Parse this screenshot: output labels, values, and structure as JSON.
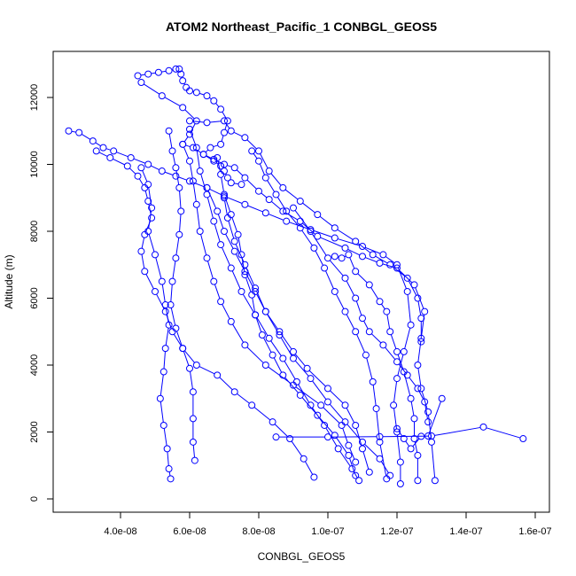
{
  "chart_data": {
    "type": "scatter",
    "title": "ATOM2 Northeast_Pacific_1 CONBGL_GEOS5",
    "xlabel": "CONBGL_GEOS5",
    "ylabel": "Altitude (m)",
    "xlim": [
      2.2e-08,
      1.6e-07
    ],
    "ylim": [
      0,
      13000
    ],
    "xticks": [
      4e-08,
      6e-08,
      8e-08,
      1e-07,
      1.2e-07,
      1.4e-07,
      1.6e-07
    ],
    "xtick_labels": [
      "4.0e-08",
      "6.0e-08",
      "8.0e-08",
      "1.0e-07",
      "1.2e-07",
      "1.4e-07",
      "1.6e-07"
    ],
    "yticks": [
      0,
      2000,
      4000,
      6000,
      8000,
      10000,
      12000
    ],
    "ytick_labels": [
      "0",
      "2000",
      "4000",
      "6000",
      "8000",
      "10000",
      "12000"
    ],
    "grid": false,
    "legend": "none",
    "color": "#0000ff",
    "series": [
      {
        "points": [
          [
            4.5e-08,
            12650
          ],
          [
            4.8e-08,
            12700
          ],
          [
            5.1e-08,
            12750
          ],
          [
            5.4e-08,
            12800
          ],
          [
            5.6e-08,
            12850
          ],
          [
            5.7e-08,
            12850
          ],
          [
            5.75e-08,
            12700
          ],
          [
            5.8e-08,
            12500
          ],
          [
            5.9e-08,
            12300
          ],
          [
            6e-08,
            12200
          ],
          [
            6.2e-08,
            12150
          ],
          [
            6.5e-08,
            12050
          ],
          [
            6.7e-08,
            11900
          ],
          [
            6.9e-08,
            11650
          ],
          [
            7.1e-08,
            11300
          ],
          [
            7e-08,
            10950
          ],
          [
            6.9e-08,
            10600
          ],
          [
            6.6e-08,
            10500
          ],
          [
            6.4e-08,
            10300
          ],
          [
            6.7e-08,
            10100
          ],
          [
            6.9e-08,
            9950
          ],
          [
            7e-08,
            9800
          ],
          [
            7.1e-08,
            9600
          ],
          [
            7.2e-08,
            9450
          ],
          [
            7.5e-08,
            9400
          ]
        ]
      },
      {
        "points": [
          [
            4.6e-08,
            12450
          ],
          [
            5.2e-08,
            12050
          ],
          [
            5.8e-08,
            11700
          ],
          [
            6.2e-08,
            11300
          ],
          [
            6e-08,
            10900
          ],
          [
            5.8e-08,
            10600
          ],
          [
            6.1e-08,
            10500
          ],
          [
            6.4e-08,
            10300
          ],
          [
            6.7e-08,
            10150
          ],
          [
            7e-08,
            10000
          ],
          [
            7.3e-08,
            9900
          ],
          [
            7.6e-08,
            9600
          ],
          [
            8e-08,
            9200
          ],
          [
            8.3e-08,
            8950
          ],
          [
            8.7e-08,
            8600
          ],
          [
            9.2e-08,
            8300
          ],
          [
            9.7e-08,
            7850
          ],
          [
            1.05e-07,
            7500
          ],
          [
            1.1e-07,
            7250
          ],
          [
            1.15e-07,
            7050
          ],
          [
            1.2e-07,
            6900
          ],
          [
            1.25e-07,
            6400
          ],
          [
            1.28e-07,
            5600
          ],
          [
            1.27e-07,
            4800
          ],
          [
            1.26e-07,
            4000
          ],
          [
            1.27e-07,
            3300
          ],
          [
            1.29e-07,
            2600
          ],
          [
            1.3e-07,
            1700
          ],
          [
            1.31e-07,
            550
          ]
        ]
      },
      {
        "points": [
          [
            2.5e-08,
            11000
          ],
          [
            2.8e-08,
            10950
          ],
          [
            3.2e-08,
            10700
          ],
          [
            3.5e-08,
            10500
          ],
          [
            3.8e-08,
            10400
          ],
          [
            4.3e-08,
            10200
          ],
          [
            4.8e-08,
            10000
          ],
          [
            5.2e-08,
            9800
          ],
          [
            5.6e-08,
            9650
          ],
          [
            6e-08,
            9500
          ],
          [
            6.5e-08,
            9300
          ],
          [
            7e-08,
            9050
          ],
          [
            7.6e-08,
            8800
          ],
          [
            8.2e-08,
            8550
          ],
          [
            8.8e-08,
            8300
          ],
          [
            9.5e-08,
            8050
          ],
          [
            1.02e-07,
            7800
          ],
          [
            1.1e-07,
            7550
          ],
          [
            1.16e-07,
            7300
          ],
          [
            1.2e-07,
            7000
          ],
          [
            1.23e-07,
            6200
          ],
          [
            1.24e-07,
            5200
          ],
          [
            1.22e-07,
            4400
          ],
          [
            1.2e-07,
            3600
          ],
          [
            1.19e-07,
            2800
          ],
          [
            1.2e-07,
            2000
          ],
          [
            1.21e-07,
            1100
          ],
          [
            1.21e-07,
            450
          ]
        ]
      },
      {
        "points": [
          [
            3.3e-08,
            10400
          ],
          [
            3.7e-08,
            10200
          ],
          [
            4.2e-08,
            9950
          ],
          [
            4.5e-08,
            9650
          ],
          [
            4.7e-08,
            9300
          ],
          [
            4.8e-08,
            8900
          ],
          [
            4.9e-08,
            8400
          ],
          [
            4.7e-08,
            7900
          ],
          [
            4.6e-08,
            7400
          ],
          [
            4.7e-08,
            6800
          ],
          [
            5e-08,
            6200
          ],
          [
            5.3e-08,
            5600
          ],
          [
            5.5e-08,
            5000
          ],
          [
            5.8e-08,
            4500
          ],
          [
            6.2e-08,
            4000
          ],
          [
            6.8e-08,
            3700
          ],
          [
            7.3e-08,
            3200
          ],
          [
            7.8e-08,
            2800
          ],
          [
            8.4e-08,
            2300
          ],
          [
            8.9e-08,
            1800
          ],
          [
            9.3e-08,
            1200
          ],
          [
            9.6e-08,
            650
          ]
        ]
      },
      {
        "points": [
          [
            4.6e-08,
            9900
          ],
          [
            4.8e-08,
            9400
          ],
          [
            4.9e-08,
            8700
          ],
          [
            4.8e-08,
            8000
          ],
          [
            5e-08,
            7300
          ],
          [
            5.2e-08,
            6500
          ],
          [
            5.3e-08,
            5800
          ],
          [
            5.4e-08,
            5200
          ],
          [
            5.3e-08,
            4500
          ],
          [
            5.25e-08,
            3800
          ],
          [
            5.15e-08,
            3000
          ],
          [
            5.25e-08,
            2200
          ],
          [
            5.35e-08,
            1500
          ],
          [
            5.4e-08,
            900
          ],
          [
            5.45e-08,
            600
          ]
        ]
      },
      {
        "points": [
          [
            5.4e-08,
            11000
          ],
          [
            5.5e-08,
            10400
          ],
          [
            5.6e-08,
            9900
          ],
          [
            5.7e-08,
            9300
          ],
          [
            5.75e-08,
            8600
          ],
          [
            5.7e-08,
            7900
          ],
          [
            5.6e-08,
            7200
          ],
          [
            5.5e-08,
            6500
          ],
          [
            5.45e-08,
            5800
          ],
          [
            5.6e-08,
            5100
          ],
          [
            5.8e-08,
            4500
          ],
          [
            6e-08,
            3900
          ],
          [
            6.1e-08,
            3200
          ],
          [
            6.1e-08,
            2400
          ],
          [
            6.1e-08,
            1700
          ],
          [
            6.15e-08,
            1150
          ]
        ]
      },
      {
        "points": [
          [
            6e-08,
            11050
          ],
          [
            6.2e-08,
            10500
          ],
          [
            6.3e-08,
            9800
          ],
          [
            6.5e-08,
            9100
          ],
          [
            6.7e-08,
            8300
          ],
          [
            6.9e-08,
            7600
          ],
          [
            7.2e-08,
            6900
          ],
          [
            7.5e-08,
            6200
          ],
          [
            7.9e-08,
            5500
          ],
          [
            8.3e-08,
            4800
          ],
          [
            8.7e-08,
            4200
          ],
          [
            9.1e-08,
            3500
          ],
          [
            9.5e-08,
            2800
          ],
          [
            9.9e-08,
            2200
          ],
          [
            1.03e-07,
            1500
          ],
          [
            1.07e-07,
            900
          ],
          [
            1.09e-07,
            550
          ]
        ]
      },
      {
        "points": [
          [
            7.8e-08,
            10400
          ],
          [
            8e-08,
            10100
          ],
          [
            8.2e-08,
            9600
          ],
          [
            8.5e-08,
            9100
          ],
          [
            8.8e-08,
            8600
          ],
          [
            9.2e-08,
            8100
          ],
          [
            9.6e-08,
            7500
          ],
          [
            9.9e-08,
            6900
          ],
          [
            1.02e-07,
            6200
          ],
          [
            1.05e-07,
            5600
          ],
          [
            1.08e-07,
            5000
          ],
          [
            1.11e-07,
            4300
          ],
          [
            1.13e-07,
            3500
          ],
          [
            1.14e-07,
            2700
          ],
          [
            1.15e-07,
            1700
          ],
          [
            1.17e-07,
            600
          ]
        ]
      },
      {
        "points": [
          [
            5.8e-08,
            10600
          ],
          [
            6e-08,
            10100
          ],
          [
            6.1e-08,
            9500
          ],
          [
            6.2e-08,
            8800
          ],
          [
            6.3e-08,
            8000
          ],
          [
            6.5e-08,
            7200
          ],
          [
            6.7e-08,
            6500
          ],
          [
            6.9e-08,
            5900
          ],
          [
            7.2e-08,
            5300
          ],
          [
            7.6e-08,
            4600
          ],
          [
            8.2e-08,
            4000
          ],
          [
            9e-08,
            3400
          ],
          [
            9.8e-08,
            2800
          ],
          [
            1.04e-07,
            2200
          ],
          [
            1.06e-07,
            1600
          ],
          [
            1.08e-07,
            1100
          ]
        ]
      },
      {
        "points": [
          [
            6.8e-08,
            10200
          ],
          [
            6.9e-08,
            9700
          ],
          [
            7e-08,
            9100
          ],
          [
            7.2e-08,
            8500
          ],
          [
            7.4e-08,
            7900
          ],
          [
            7.5e-08,
            7300
          ],
          [
            7.6e-08,
            6700
          ],
          [
            7.8e-08,
            6100
          ],
          [
            7.9e-08,
            5500
          ],
          [
            8.1e-08,
            4900
          ],
          [
            8.4e-08,
            4300
          ],
          [
            8.7e-08,
            3700
          ],
          [
            9.2e-08,
            3100
          ],
          [
            9.7e-08,
            2500
          ],
          [
            1.02e-07,
            1900
          ],
          [
            1.06e-07,
            1300
          ],
          [
            1.08e-07,
            700
          ]
        ]
      },
      {
        "points": [
          [
            6.5e-08,
            9300
          ],
          [
            6.8e-08,
            8600
          ],
          [
            7e-08,
            8000
          ],
          [
            7.3e-08,
            7400
          ],
          [
            7.6e-08,
            6800
          ],
          [
            7.9e-08,
            6200
          ],
          [
            8.2e-08,
            5600
          ],
          [
            8.6e-08,
            5000
          ],
          [
            9e-08,
            4400
          ],
          [
            9.4e-08,
            3900
          ],
          [
            1e-07,
            3300
          ],
          [
            1.05e-07,
            2800
          ],
          [
            1.08e-07,
            2200
          ],
          [
            1.1e-07,
            1500
          ],
          [
            1.12e-07,
            800
          ]
        ]
      },
      {
        "points": [
          [
            1.02e-07,
            7250
          ],
          [
            1.04e-07,
            7200
          ],
          [
            1.06e-07,
            7300
          ],
          [
            1.08e-07,
            6800
          ],
          [
            1.12e-07,
            6400
          ],
          [
            1.15e-07,
            5900
          ],
          [
            1.17e-07,
            5600
          ],
          [
            1.18e-07,
            5000
          ],
          [
            1.2e-07,
            4400
          ],
          [
            1.22e-07,
            3800
          ],
          [
            1.24e-07,
            3000
          ],
          [
            1.25e-07,
            2400
          ],
          [
            1.25e-07,
            1800
          ],
          [
            1.26e-07,
            1300
          ],
          [
            1.26e-07,
            550
          ]
        ]
      },
      {
        "points": [
          [
            8.5e-08,
            1850
          ],
          [
            1e-07,
            1850
          ],
          [
            1.15e-07,
            1860
          ],
          [
            1.3e-07,
            1880
          ],
          [
            1.45e-07,
            2150
          ],
          [
            1.565e-07,
            1800
          ]
        ]
      },
      {
        "points": [
          [
            1.2e-07,
            2100
          ],
          [
            1.22e-07,
            1800
          ],
          [
            1.24e-07,
            1500
          ],
          [
            1.27e-07,
            1870
          ],
          [
            1.29e-07,
            1880
          ],
          [
            1.33e-07,
            3000
          ]
        ]
      },
      {
        "points": [
          [
            9e-08,
            8700
          ],
          [
            9.5e-08,
            8000
          ],
          [
            1e-07,
            7200
          ],
          [
            1.05e-07,
            6600
          ],
          [
            1.08e-07,
            6000
          ],
          [
            1.1e-07,
            5400
          ],
          [
            1.12e-07,
            5000
          ],
          [
            1.16e-07,
            4600
          ],
          [
            1.2e-07,
            4100
          ],
          [
            1.23e-07,
            3700
          ],
          [
            1.26e-07,
            3300
          ],
          [
            1.28e-07,
            2900
          ],
          [
            1.29e-07,
            2300
          ]
        ]
      },
      {
        "points": [
          [
            7e-08,
            9000
          ],
          [
            7.1e-08,
            8400
          ],
          [
            7.3e-08,
            7700
          ],
          [
            7.6e-08,
            7000
          ],
          [
            7.9e-08,
            6300
          ],
          [
            8.2e-08,
            5600
          ],
          [
            8.6e-08,
            4900
          ],
          [
            9e-08,
            4200
          ],
          [
            9.5e-08,
            3600
          ],
          [
            1e-07,
            2900
          ],
          [
            1.05e-07,
            2300
          ],
          [
            1.1e-07,
            1700
          ],
          [
            1.15e-07,
            1200
          ],
          [
            1.18e-07,
            700
          ]
        ]
      },
      {
        "points": [
          [
            6e-08,
            11300
          ],
          [
            6.5e-08,
            11250
          ],
          [
            7e-08,
            11300
          ],
          [
            7.2e-08,
            11000
          ],
          [
            7.6e-08,
            10800
          ],
          [
            8e-08,
            10400
          ],
          [
            8.3e-08,
            9800
          ],
          [
            8.7e-08,
            9300
          ],
          [
            9.2e-08,
            8900
          ],
          [
            9.7e-08,
            8500
          ],
          [
            1.02e-07,
            8100
          ],
          [
            1.08e-07,
            7700
          ],
          [
            1.13e-07,
            7300
          ],
          [
            1.18e-07,
            7000
          ],
          [
            1.23e-07,
            6600
          ],
          [
            1.26e-07,
            6000
          ],
          [
            1.27e-07,
            5400
          ],
          [
            1.27e-07,
            4700
          ]
        ]
      }
    ]
  }
}
